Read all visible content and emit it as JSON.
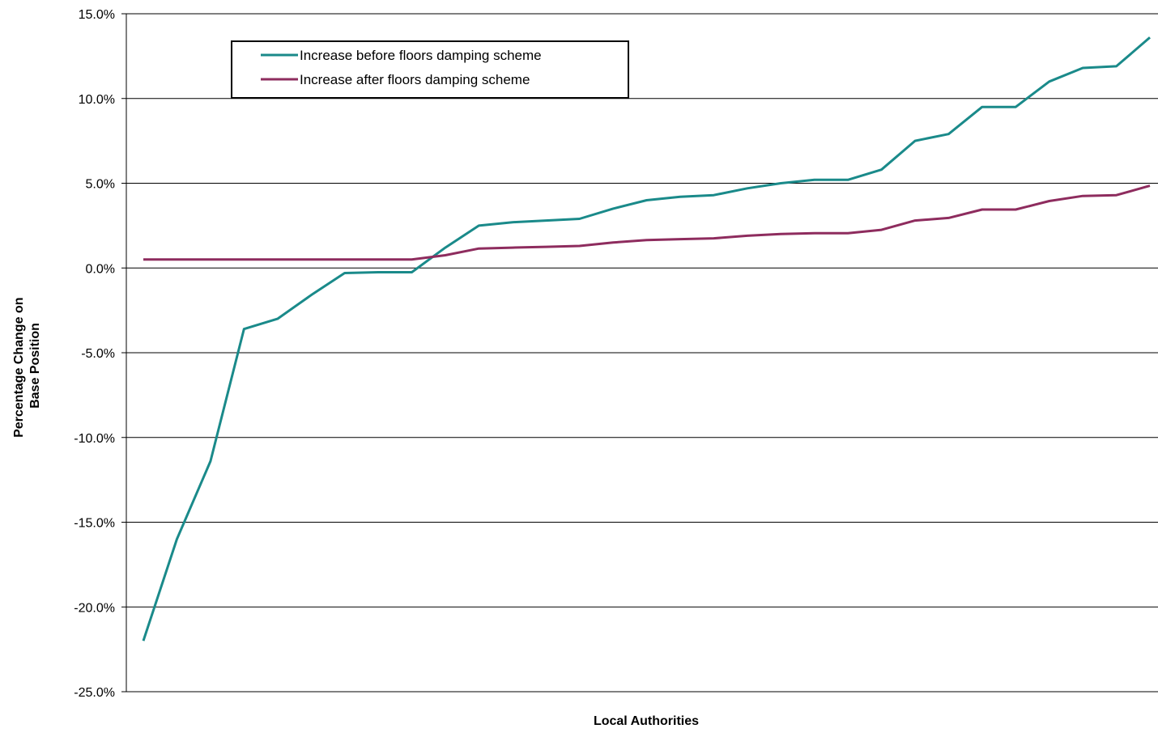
{
  "chart_data": {
    "type": "line",
    "title": "",
    "xlabel": "Local Authorities",
    "ylabel": "Percentage Change on Base Position",
    "ylabel_lines": [
      "Percentage Change on",
      "Base Position"
    ],
    "ylim": [
      -25,
      15
    ],
    "yticks": [
      15,
      10,
      5,
      0,
      -5,
      -10,
      -15,
      -20,
      -25
    ],
    "ytick_labels": [
      "15.0%",
      "10.0%",
      "5.0%",
      "0.0%",
      "-5.0%",
      "-10.0%",
      "-15.0%",
      "-20.0%",
      "-25.0%"
    ],
    "grid": true,
    "legend_position": "top-left",
    "x": [
      1,
      2,
      3,
      4,
      5,
      6,
      7,
      8,
      9,
      10,
      11,
      12,
      13,
      14,
      15,
      16,
      17,
      18,
      19,
      20,
      21,
      22,
      23,
      24,
      25,
      26,
      27,
      28,
      29,
      30,
      31
    ],
    "series": [
      {
        "name": "Increase before floors damping scheme",
        "color": "#1a8a8a",
        "values": [
          -22.0,
          -16.0,
          -11.4,
          -3.6,
          -3.0,
          -1.6,
          -0.3,
          -0.25,
          -0.25,
          1.2,
          2.5,
          2.7,
          2.8,
          2.9,
          3.5,
          4.0,
          4.2,
          4.3,
          4.7,
          5.0,
          5.2,
          5.2,
          5.8,
          7.5,
          7.9,
          9.5,
          9.5,
          11.0,
          11.8,
          11.9,
          13.6
        ]
      },
      {
        "name": "Increase after floors damping scheme",
        "color": "#8e2c5e",
        "values": [
          0.5,
          0.5,
          0.5,
          0.5,
          0.5,
          0.5,
          0.5,
          0.5,
          0.5,
          0.75,
          1.15,
          1.2,
          1.25,
          1.3,
          1.5,
          1.65,
          1.7,
          1.75,
          1.9,
          2.0,
          2.05,
          2.05,
          2.25,
          2.8,
          2.95,
          3.45,
          3.45,
          3.95,
          4.25,
          4.3,
          4.85
        ]
      }
    ]
  }
}
